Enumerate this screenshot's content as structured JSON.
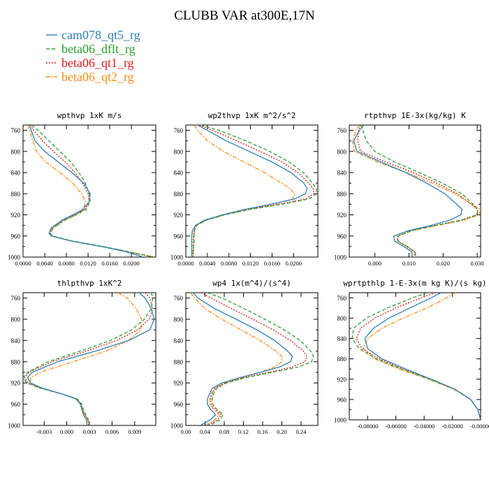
{
  "figure": {
    "title": "CLUBB VAR at300E,17N"
  },
  "legend": [
    {
      "name": "cam078_qt5_rg",
      "color": "#2e7fb8",
      "dash": "solid"
    },
    {
      "name": "beta06_dflt_rg",
      "color": "#2ca02c",
      "dash": "dash"
    },
    {
      "name": "beta06_qt1_rg",
      "color": "#e41a1c",
      "dash": "dot"
    },
    {
      "name": "beta06_qt2_rg",
      "color": "#ff8c1a",
      "dash": "dashdot"
    }
  ],
  "chart_data": [
    {
      "type": "line",
      "title": "wpthvp  1xK m/s",
      "xlim": [
        0.0,
        0.0245
      ],
      "xticks": [
        "0.0000",
        "0.0040",
        "0.0080",
        "0.0120",
        "0.0160",
        "0.0200"
      ],
      "xtick_values": [
        0.0,
        0.004,
        0.008,
        0.012,
        0.016,
        0.02
      ],
      "ylim": [
        1000,
        750
      ],
      "yticks": [
        760,
        800,
        840,
        880,
        920,
        960,
        1000
      ],
      "y": [
        750,
        760,
        780,
        800,
        820,
        840,
        860,
        880,
        895,
        910,
        920,
        930,
        945,
        955,
        960,
        970,
        980,
        990,
        1000
      ],
      "series": [
        {
          "name": "cam078_qt5_rg",
          "x": [
            0.0012,
            0.0015,
            0.0022,
            0.004,
            0.0065,
            0.009,
            0.0112,
            0.0124,
            0.0122,
            0.011,
            0.0092,
            0.0072,
            0.0052,
            0.0048,
            0.0052,
            0.009,
            0.0145,
            0.019,
            0.0222
          ]
        },
        {
          "name": "beta06_dflt_rg",
          "x": [
            0.0016,
            0.0028,
            0.0048,
            0.0068,
            0.0088,
            0.0103,
            0.0115,
            0.0122,
            0.0124,
            0.0116,
            0.0098,
            0.0076,
            0.0055,
            0.005,
            0.0054,
            0.0092,
            0.0148,
            0.0195,
            0.0242
          ]
        },
        {
          "name": "beta06_qt1_rg",
          "x": [
            0.0013,
            0.002,
            0.0036,
            0.0056,
            0.0078,
            0.0096,
            0.011,
            0.012,
            0.0122,
            0.0114,
            0.0096,
            0.0074,
            0.0053,
            0.0049,
            0.0053,
            0.0091,
            0.0146,
            0.0193,
            0.024
          ]
        },
        {
          "name": "beta06_qt2_rg",
          "x": [
            0.0009,
            0.0012,
            0.0018,
            0.0025,
            0.0042,
            0.0068,
            0.0092,
            0.0108,
            0.0115,
            0.0112,
            0.0098,
            0.0078,
            0.0056,
            0.005,
            0.0054,
            0.0092,
            0.0147,
            0.0195,
            0.0243
          ]
        }
      ]
    },
    {
      "type": "line",
      "title": "wp2thvp  1xK m^2/s^2",
      "xlim": [
        0.0,
        0.0245
      ],
      "xticks": [
        "0.0000",
        "0.0040",
        "0.0080",
        "0.0120",
        "0.0160",
        "0.0200"
      ],
      "xtick_values": [
        0.0,
        0.004,
        0.008,
        0.012,
        0.016,
        0.02
      ],
      "ylim": [
        1000,
        750
      ],
      "yticks": [
        760,
        800,
        840,
        880,
        920,
        960,
        1000
      ],
      "y": [
        750,
        760,
        780,
        800,
        820,
        840,
        860,
        870,
        880,
        890,
        900,
        910,
        920,
        930,
        940,
        950,
        960,
        970,
        980,
        990,
        1000
      ],
      "series": [
        {
          "name": "cam078_qt5_rg",
          "x": [
            0.0022,
            0.004,
            0.0075,
            0.0118,
            0.016,
            0.0195,
            0.0219,
            0.0225,
            0.0222,
            0.0202,
            0.0158,
            0.0108,
            0.0068,
            0.0035,
            0.0018,
            0.0012,
            0.0011,
            0.0011,
            0.0011,
            0.0011,
            0.0011
          ]
        },
        {
          "name": "beta06_dflt_rg",
          "x": [
            0.0028,
            0.0062,
            0.0112,
            0.0156,
            0.0192,
            0.0218,
            0.0235,
            0.0242,
            0.0243,
            0.0228,
            0.0178,
            0.0118,
            0.0072,
            0.0038,
            0.002,
            0.0016,
            0.0015,
            0.0015,
            0.0014,
            0.0014,
            0.0014
          ]
        },
        {
          "name": "beta06_qt1_rg",
          "x": [
            0.0025,
            0.005,
            0.0095,
            0.0138,
            0.0178,
            0.0208,
            0.0228,
            0.0236,
            0.0238,
            0.0222,
            0.0172,
            0.0114,
            0.007,
            0.0037,
            0.0019,
            0.0015,
            0.0014,
            0.0014,
            0.0014,
            0.0013,
            0.0013
          ]
        },
        {
          "name": "beta06_qt2_rg",
          "x": [
            0.0016,
            0.0022,
            0.004,
            0.007,
            0.0108,
            0.0146,
            0.0178,
            0.0193,
            0.0202,
            0.0198,
            0.0162,
            0.0112,
            0.0072,
            0.0038,
            0.002,
            0.0016,
            0.0015,
            0.0015,
            0.0015,
            0.0014,
            0.0014
          ]
        }
      ]
    },
    {
      "type": "line",
      "title": "rtpthvp  1E-3x(kg/kg) K",
      "xlim": [
        -0.0075,
        0.031
      ],
      "xticks": [
        "0.000",
        "0.010",
        "0.020",
        "0.030"
      ],
      "xtick_values": [
        0.0,
        0.01,
        0.02,
        0.03
      ],
      "ylim": [
        1000,
        750
      ],
      "yticks": [
        760,
        800,
        840,
        880,
        920,
        960,
        1000
      ],
      "y": [
        750,
        760,
        780,
        800,
        820,
        840,
        860,
        880,
        900,
        910,
        920,
        930,
        940,
        950,
        960,
        970,
        980,
        990,
        1000
      ],
      "series": [
        {
          "name": "cam078_qt5_rg",
          "x": [
            -0.0032,
            -0.0045,
            -0.0062,
            -0.0052,
            0.0018,
            0.009,
            0.0152,
            0.0205,
            0.024,
            0.0256,
            0.0252,
            0.022,
            0.0165,
            0.0098,
            0.0055,
            0.0058,
            0.0085,
            0.0108,
            0.011
          ]
        },
        {
          "name": "beta06_dflt_rg",
          "x": [
            -0.004,
            -0.0035,
            -0.0025,
            0.0,
            0.0058,
            0.013,
            0.0198,
            0.0255,
            0.0288,
            0.0302,
            0.03,
            0.0255,
            0.018,
            0.0108,
            0.0068,
            0.0068,
            0.0095,
            0.0118,
            0.012
          ]
        },
        {
          "name": "beta06_qt1_rg",
          "x": [
            -0.0042,
            -0.0048,
            -0.005,
            -0.0042,
            0.0032,
            0.0112,
            0.0182,
            0.0242,
            0.0282,
            0.0302,
            0.0298,
            0.0252,
            0.0178,
            0.0106,
            0.0066,
            0.0066,
            0.0093,
            0.0116,
            0.0118
          ]
        },
        {
          "name": "beta06_qt2_rg",
          "x": [
            -0.0045,
            -0.0055,
            -0.0065,
            -0.006,
            0.0008,
            0.0092,
            0.0168,
            0.0235,
            0.0285,
            0.031,
            0.0305,
            0.0262,
            0.0185,
            0.011,
            0.0068,
            0.0068,
            0.0095,
            0.0118,
            0.012
          ]
        }
      ]
    },
    {
      "type": "line",
      "title": "thlpthvp  1xK^2",
      "xlim": [
        -0.0058,
        0.0118
      ],
      "xticks": [
        "-0.003",
        "0.000",
        "0.003",
        "0.006",
        "0.009"
      ],
      "xtick_values": [
        -0.003,
        0.0,
        0.003,
        0.006,
        0.009
      ],
      "ylim": [
        1000,
        750
      ],
      "yticks": [
        760,
        800,
        840,
        880,
        920,
        960,
        1000
      ],
      "y": [
        750,
        760,
        780,
        800,
        820,
        840,
        860,
        880,
        900,
        910,
        920,
        930,
        940,
        950,
        960,
        970,
        980,
        990,
        1000
      ],
      "series": [
        {
          "name": "cam078_qt5_rg",
          "x": [
            0.0096,
            0.0104,
            0.0112,
            0.0116,
            0.011,
            0.0082,
            0.0038,
            -0.0012,
            -0.0046,
            -0.0052,
            -0.0048,
            -0.0032,
            -0.0008,
            0.0012,
            0.0018,
            0.002,
            0.0022,
            0.0026,
            0.0027
          ]
        },
        {
          "name": "beta06_dflt_rg",
          "x": [
            0.0112,
            0.0114,
            0.0112,
            0.0103,
            0.0086,
            0.0058,
            0.0018,
            -0.0025,
            -0.0052,
            -0.0058,
            -0.0053,
            -0.0035,
            -0.0008,
            0.0014,
            0.002,
            0.0022,
            0.0025,
            0.0029,
            0.003
          ]
        },
        {
          "name": "beta06_qt1_rg",
          "x": [
            0.0104,
            0.011,
            0.0114,
            0.0109,
            0.0094,
            0.0066,
            0.0026,
            -0.002,
            -0.005,
            -0.0056,
            -0.0051,
            -0.0034,
            -0.0008,
            0.0013,
            0.0019,
            0.0021,
            0.0024,
            0.0028,
            0.0029
          ]
        },
        {
          "name": "beta06_qt2_rg",
          "x": [
            0.0068,
            0.008,
            0.0092,
            0.0099,
            0.0098,
            0.0082,
            0.0052,
            0.0008,
            -0.0035,
            -0.0048,
            -0.0048,
            -0.0033,
            -0.0008,
            0.0012,
            0.0018,
            0.002,
            0.0024,
            0.0028,
            0.003
          ]
        }
      ]
    },
    {
      "type": "line",
      "title": "wp4  1x(m^4)/(s^4)",
      "xlim": [
        0.0,
        0.275
      ],
      "xticks": [
        "0.00",
        "0.04",
        "0.08",
        "0.12",
        "0.16",
        "0.20",
        "0.24"
      ],
      "xtick_values": [
        0.0,
        0.04,
        0.08,
        0.12,
        0.16,
        0.2,
        0.24
      ],
      "ylim": [
        1000,
        750
      ],
      "yticks": [
        760,
        800,
        840,
        880,
        920,
        960,
        1000
      ],
      "y": [
        750,
        760,
        780,
        800,
        820,
        840,
        860,
        870,
        880,
        890,
        900,
        910,
        920,
        930,
        940,
        950,
        960,
        970,
        980,
        990,
        1000
      ],
      "series": [
        {
          "name": "cam078_qt5_rg",
          "x": [
            0.015,
            0.025,
            0.06,
            0.105,
            0.148,
            0.185,
            0.212,
            0.222,
            0.218,
            0.195,
            0.155,
            0.112,
            0.075,
            0.055,
            0.05,
            0.045,
            0.045,
            0.052,
            0.062,
            0.05,
            0.03
          ]
        },
        {
          "name": "beta06_dflt_rg",
          "x": [
            0.045,
            0.075,
            0.122,
            0.165,
            0.205,
            0.238,
            0.26,
            0.266,
            0.262,
            0.235,
            0.18,
            0.125,
            0.085,
            0.064,
            0.058,
            0.055,
            0.056,
            0.065,
            0.078,
            0.07,
            0.05
          ]
        },
        {
          "name": "beta06_qt1_rg",
          "x": [
            0.032,
            0.052,
            0.095,
            0.14,
            0.182,
            0.218,
            0.245,
            0.252,
            0.248,
            0.222,
            0.172,
            0.12,
            0.082,
            0.061,
            0.055,
            0.052,
            0.053,
            0.062,
            0.074,
            0.065,
            0.045
          ]
        },
        {
          "name": "beta06_qt2_rg",
          "x": [
            0.01,
            0.018,
            0.04,
            0.075,
            0.115,
            0.155,
            0.188,
            0.2,
            0.2,
            0.185,
            0.155,
            0.115,
            0.08,
            0.06,
            0.054,
            0.05,
            0.05,
            0.058,
            0.07,
            0.06,
            0.04
          ]
        }
      ]
    },
    {
      "type": "line",
      "title": "wprtpthlp  1-E-3x(m kg K)/(s kg)",
      "xlim": [
        -0.093,
        0.0
      ],
      "xticks": [
        "-0.08000",
        "-0.06000",
        "-0.04000",
        "-0.02000",
        "-0.00000"
      ],
      "xtick_values": [
        -0.08,
        -0.06,
        -0.04,
        -0.02,
        0.0
      ],
      "ylim": [
        1000,
        750
      ],
      "yticks": [
        760,
        800,
        840,
        880,
        920,
        960,
        1000
      ],
      "y": [
        750,
        760,
        780,
        800,
        820,
        840,
        860,
        880,
        900,
        920,
        940,
        960,
        980,
        990,
        1000
      ],
      "series": [
        {
          "name": "cam078_qt5_rg",
          "x": [
            -0.028,
            -0.035,
            -0.05,
            -0.065,
            -0.076,
            -0.082,
            -0.08,
            -0.07,
            -0.053,
            -0.035,
            -0.018,
            -0.007,
            -0.002,
            -0.001,
            0.0
          ]
        },
        {
          "name": "beta06_dflt_rg",
          "x": [
            -0.038,
            -0.048,
            -0.066,
            -0.081,
            -0.09,
            -0.091,
            -0.086,
            -0.074,
            -0.056,
            -0.036,
            -0.018,
            -0.007,
            -0.002,
            -0.001,
            0.0
          ]
        },
        {
          "name": "beta06_qt1_rg",
          "x": [
            -0.032,
            -0.042,
            -0.06,
            -0.075,
            -0.085,
            -0.088,
            -0.084,
            -0.072,
            -0.055,
            -0.035,
            -0.018,
            -0.007,
            -0.002,
            -0.001,
            0.0
          ]
        },
        {
          "name": "beta06_qt2_rg",
          "x": [
            -0.018,
            -0.024,
            -0.038,
            -0.055,
            -0.07,
            -0.08,
            -0.083,
            -0.075,
            -0.058,
            -0.037,
            -0.019,
            -0.007,
            -0.002,
            -0.001,
            0.0
          ]
        }
      ]
    }
  ]
}
